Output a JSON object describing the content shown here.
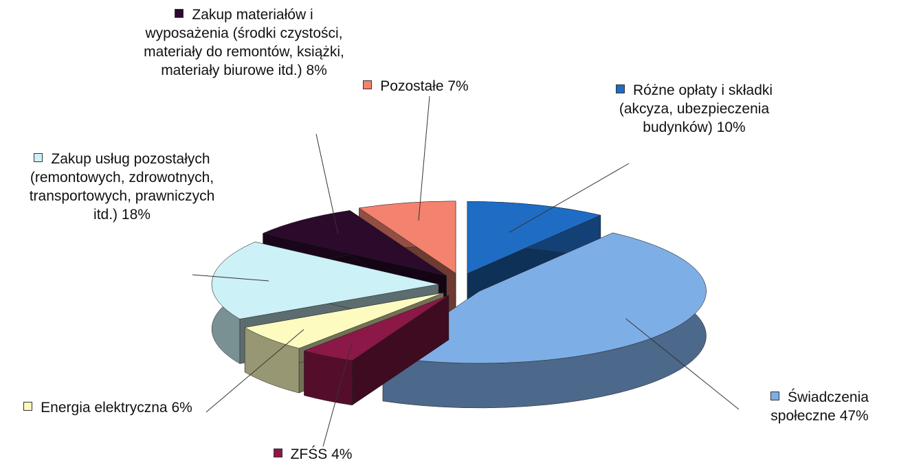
{
  "chart_data": {
    "type": "pie",
    "categories": [
      "Różne opłaty i składki (akcyza, ubezpieczenia budynków)",
      "Świadczenia społeczne",
      "ZFŚS",
      "Energia elektryczna",
      "Zakup usług pozostałych (remontowych, zdrowotnych, transportowych, prawniczych itd.)",
      "Zakup materiałów i wyposażenia (środki czystości, materiały do remontów, książki, materiały biurowe itd.)",
      "Pozostałe"
    ],
    "values": [
      10,
      47,
      4,
      6,
      18,
      8,
      7
    ],
    "value_labels": [
      "10%",
      "47%",
      "4%",
      "6%",
      "18%",
      "8%",
      "7%"
    ],
    "colors": [
      "#1f6cc4",
      "#7eaee6",
      "#8c1848",
      "#fdfbc0",
      "#ccf1f7",
      "#2c0a2c",
      "#f3826e"
    ]
  }
}
